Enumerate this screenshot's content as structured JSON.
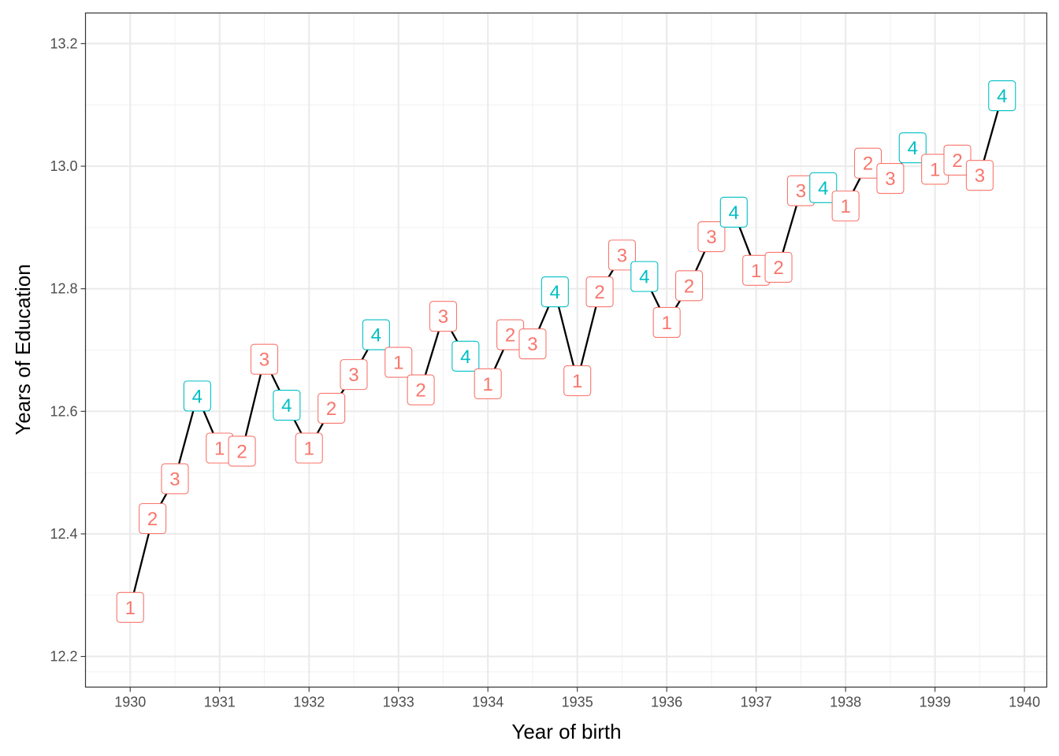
{
  "chart_data": {
    "type": "line",
    "xlabel": "Year of birth",
    "ylabel": "Years of Education",
    "xlim": [
      1929.5,
      1940.25
    ],
    "ylim": [
      12.15,
      13.25
    ],
    "x_ticks": [
      "1930",
      "1931",
      "1932",
      "1933",
      "1934",
      "1935",
      "1936",
      "1937",
      "1938",
      "1939",
      "1940"
    ],
    "y_ticks": [
      "12.2",
      "12.4",
      "12.6",
      "12.8",
      "13.0",
      "13.2"
    ],
    "grid": true,
    "line_color": "#000000",
    "quarter_colors": {
      "1": "#F8766D",
      "2": "#F8766D",
      "3": "#F8766D",
      "4": "#00BFC4"
    },
    "points": [
      {
        "x": 1930.0,
        "y": 12.28,
        "label": "1"
      },
      {
        "x": 1930.25,
        "y": 12.425,
        "label": "2"
      },
      {
        "x": 1930.5,
        "y": 12.49,
        "label": "3"
      },
      {
        "x": 1930.75,
        "y": 12.625,
        "label": "4"
      },
      {
        "x": 1931.0,
        "y": 12.54,
        "label": "1"
      },
      {
        "x": 1931.25,
        "y": 12.535,
        "label": "2"
      },
      {
        "x": 1931.5,
        "y": 12.685,
        "label": "3"
      },
      {
        "x": 1931.75,
        "y": 12.61,
        "label": "4"
      },
      {
        "x": 1932.0,
        "y": 12.54,
        "label": "1"
      },
      {
        "x": 1932.25,
        "y": 12.605,
        "label": "2"
      },
      {
        "x": 1932.5,
        "y": 12.66,
        "label": "3"
      },
      {
        "x": 1932.75,
        "y": 12.725,
        "label": "4"
      },
      {
        "x": 1933.0,
        "y": 12.68,
        "label": "1"
      },
      {
        "x": 1933.25,
        "y": 12.635,
        "label": "2"
      },
      {
        "x": 1933.5,
        "y": 12.755,
        "label": "3"
      },
      {
        "x": 1933.75,
        "y": 12.69,
        "label": "4"
      },
      {
        "x": 1934.0,
        "y": 12.645,
        "label": "1"
      },
      {
        "x": 1934.25,
        "y": 12.725,
        "label": "2"
      },
      {
        "x": 1934.5,
        "y": 12.71,
        "label": "3"
      },
      {
        "x": 1934.75,
        "y": 12.795,
        "label": "4"
      },
      {
        "x": 1935.0,
        "y": 12.65,
        "label": "1"
      },
      {
        "x": 1935.25,
        "y": 12.795,
        "label": "2"
      },
      {
        "x": 1935.5,
        "y": 12.855,
        "label": "3"
      },
      {
        "x": 1935.75,
        "y": 12.82,
        "label": "4"
      },
      {
        "x": 1936.0,
        "y": 12.745,
        "label": "1"
      },
      {
        "x": 1936.25,
        "y": 12.805,
        "label": "2"
      },
      {
        "x": 1936.5,
        "y": 12.885,
        "label": "3"
      },
      {
        "x": 1936.75,
        "y": 12.925,
        "label": "4"
      },
      {
        "x": 1937.0,
        "y": 12.83,
        "label": "1"
      },
      {
        "x": 1937.25,
        "y": 12.835,
        "label": "2"
      },
      {
        "x": 1937.5,
        "y": 12.96,
        "label": "3"
      },
      {
        "x": 1937.75,
        "y": 12.965,
        "label": "4"
      },
      {
        "x": 1938.0,
        "y": 12.935,
        "label": "1"
      },
      {
        "x": 1938.25,
        "y": 13.005,
        "label": "2"
      },
      {
        "x": 1938.5,
        "y": 12.98,
        "label": "3"
      },
      {
        "x": 1938.75,
        "y": 13.03,
        "label": "4"
      },
      {
        "x": 1939.0,
        "y": 12.995,
        "label": "1"
      },
      {
        "x": 1939.25,
        "y": 13.01,
        "label": "2"
      },
      {
        "x": 1939.5,
        "y": 12.985,
        "label": "3"
      },
      {
        "x": 1939.75,
        "y": 13.115,
        "label": "4"
      }
    ]
  }
}
